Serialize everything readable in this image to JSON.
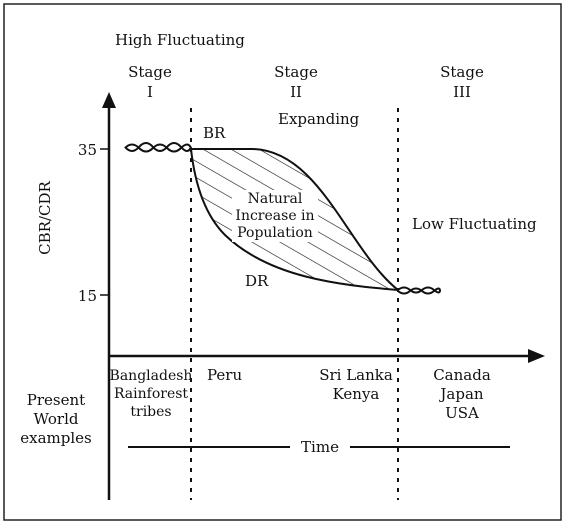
{
  "header": {
    "top_label": "High Fluctuating"
  },
  "stages": [
    {
      "word": "Stage",
      "numeral": "I"
    },
    {
      "word": "Stage",
      "numeral": "II"
    },
    {
      "word": "Stage",
      "numeral": "III"
    }
  ],
  "phase_labels": {
    "expanding": "Expanding",
    "low_fluctuating": "Low Fluctuating"
  },
  "curves": {
    "birth_rate": "BR",
    "death_rate": "DR"
  },
  "shaded_region": {
    "lines": [
      "Natural",
      "Increase in",
      "Population"
    ]
  },
  "y_axis": {
    "label": "CBR/CDR",
    "ticks": [
      "35",
      "15"
    ]
  },
  "examples": {
    "heading_lines": [
      "Present",
      "World",
      "examples"
    ],
    "stage1": [
      "Bangladesh",
      "Rainforest",
      "tribes"
    ],
    "stage2_left": [
      "Peru"
    ],
    "stage2_right": [
      "Sri Lanka",
      "Kenya"
    ],
    "stage3": [
      "Canada",
      "Japan",
      "USA"
    ]
  },
  "x_axis": {
    "label": "Time"
  },
  "colors": {
    "ink": "#111111",
    "background": "#ffffff"
  }
}
